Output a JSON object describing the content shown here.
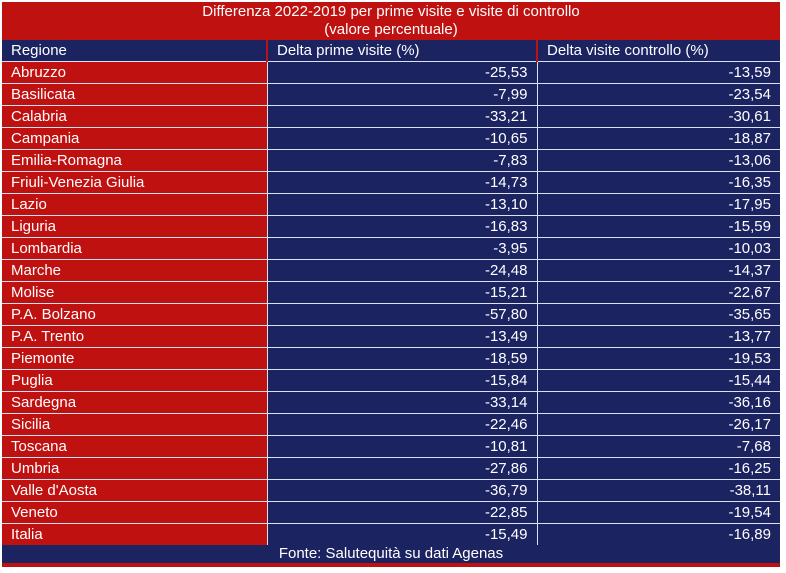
{
  "title": {
    "line1": "Differenza 2022-2019 per prime visite e visite di controllo",
    "line2": "(valore percentuale)"
  },
  "table": {
    "headers": [
      "Regione",
      "Delta prime visite (%)",
      "Delta visite controllo (%)"
    ],
    "rows": [
      {
        "region": "Abruzzo",
        "delta_prime": "-25,53",
        "delta_controllo": "-13,59"
      },
      {
        "region": "Basilicata",
        "delta_prime": "-7,99",
        "delta_controllo": "-23,54"
      },
      {
        "region": "Calabria",
        "delta_prime": "-33,21",
        "delta_controllo": "-30,61"
      },
      {
        "region": "Campania",
        "delta_prime": "-10,65",
        "delta_controllo": "-18,87"
      },
      {
        "region": "Emilia-Romagna",
        "delta_prime": "-7,83",
        "delta_controllo": "-13,06"
      },
      {
        "region": "Friuli-Venezia Giulia",
        "delta_prime": "-14,73",
        "delta_controllo": "-16,35"
      },
      {
        "region": "Lazio",
        "delta_prime": "-13,10",
        "delta_controllo": "-17,95"
      },
      {
        "region": "Liguria",
        "delta_prime": "-16,83",
        "delta_controllo": "-15,59"
      },
      {
        "region": "Lombardia",
        "delta_prime": "-3,95",
        "delta_controllo": "-10,03"
      },
      {
        "region": "Marche",
        "delta_prime": "-24,48",
        "delta_controllo": "-14,37"
      },
      {
        "region": "Molise",
        "delta_prime": "-15,21",
        "delta_controllo": "-22,67"
      },
      {
        "region": "P.A. Bolzano",
        "delta_prime": "-57,80",
        "delta_controllo": "-35,65"
      },
      {
        "region": "P.A. Trento",
        "delta_prime": "-13,49",
        "delta_controllo": "-13,77"
      },
      {
        "region": "Piemonte",
        "delta_prime": "-18,59",
        "delta_controllo": "-19,53"
      },
      {
        "region": "Puglia",
        "delta_prime": "-15,84",
        "delta_controllo": "-15,44"
      },
      {
        "region": "Sardegna",
        "delta_prime": "-33,14",
        "delta_controllo": "-36,16"
      },
      {
        "region": "Sicilia",
        "delta_prime": "-22,46",
        "delta_controllo": "-26,17"
      },
      {
        "region": "Toscana",
        "delta_prime": "-10,81",
        "delta_controllo": "-7,68"
      },
      {
        "region": "Umbria",
        "delta_prime": "-27,86",
        "delta_controllo": "-16,25"
      },
      {
        "region": "Valle d'Aosta",
        "delta_prime": "-36,79",
        "delta_controllo": "-38,11"
      },
      {
        "region": "Veneto",
        "delta_prime": "-22,85",
        "delta_controllo": "-19,54"
      },
      {
        "region": "Italia",
        "delta_prime": "-15,49",
        "delta_controllo": "-16,89"
      }
    ]
  },
  "footer": {
    "source": "Fonte: Salutequità su dati Agenas"
  },
  "colors": {
    "red": "#C01111",
    "navy": "#1B2361",
    "grid": "#D9E1F2",
    "text": "#FFFFFF"
  },
  "chart_data": {
    "type": "table",
    "title": "Differenza 2022-2019 per prime visite e visite di controllo (valore percentuale)",
    "categories": [
      "Abruzzo",
      "Basilicata",
      "Calabria",
      "Campania",
      "Emilia-Romagna",
      "Friuli-Venezia Giulia",
      "Lazio",
      "Liguria",
      "Lombardia",
      "Marche",
      "Molise",
      "P.A. Bolzano",
      "P.A. Trento",
      "Piemonte",
      "Puglia",
      "Sardegna",
      "Sicilia",
      "Toscana",
      "Umbria",
      "Valle d'Aosta",
      "Veneto",
      "Italia"
    ],
    "series": [
      {
        "name": "Delta prime visite (%)",
        "values": [
          -25.53,
          -7.99,
          -33.21,
          -10.65,
          -7.83,
          -14.73,
          -13.1,
          -16.83,
          -3.95,
          -24.48,
          -15.21,
          -57.8,
          -13.49,
          -18.59,
          -15.84,
          -33.14,
          -22.46,
          -10.81,
          -27.86,
          -36.79,
          -22.85,
          -15.49
        ]
      },
      {
        "name": "Delta visite controllo (%)",
        "values": [
          -13.59,
          -23.54,
          -30.61,
          -18.87,
          -13.06,
          -16.35,
          -17.95,
          -15.59,
          -10.03,
          -14.37,
          -22.67,
          -35.65,
          -13.77,
          -19.53,
          -15.44,
          -36.16,
          -26.17,
          -7.68,
          -16.25,
          -38.11,
          -19.54,
          -16.89
        ]
      }
    ],
    "annotations": [
      "Fonte: Salutequità su dati Agenas"
    ]
  }
}
